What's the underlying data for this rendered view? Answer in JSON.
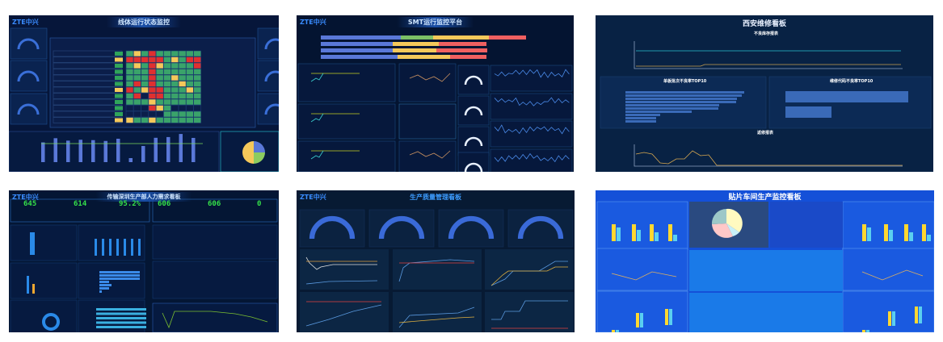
{
  "logo_text": "ZTE中兴",
  "dashboards": [
    {
      "title": "线体运行状态监控"
    },
    {
      "title": "SMT运行监控平台"
    },
    {
      "title": "西安维修看板",
      "sections": [
        "不良库存报表",
        "单板批次不良率TOP10",
        "维修代码不良率TOP10",
        "返修报表"
      ]
    },
    {
      "title": "传输深圳生产部人力需求看板",
      "kpis": [
        "645",
        "614",
        "95.2%",
        "606",
        "606",
        "0"
      ]
    },
    {
      "title": "生产质量管理看板"
    },
    {
      "title": "贴片车间生产监控看板"
    }
  ],
  "colors": {
    "dark_bg": "#06163a",
    "accent_blue": "#3a6fd8",
    "heat_green": "#3aa36a",
    "heat_red": "#e03030",
    "heat_yellow": "#f5c85a",
    "kpi_green": "#35e04a",
    "bright_blue_bg": "#1450d8"
  }
}
